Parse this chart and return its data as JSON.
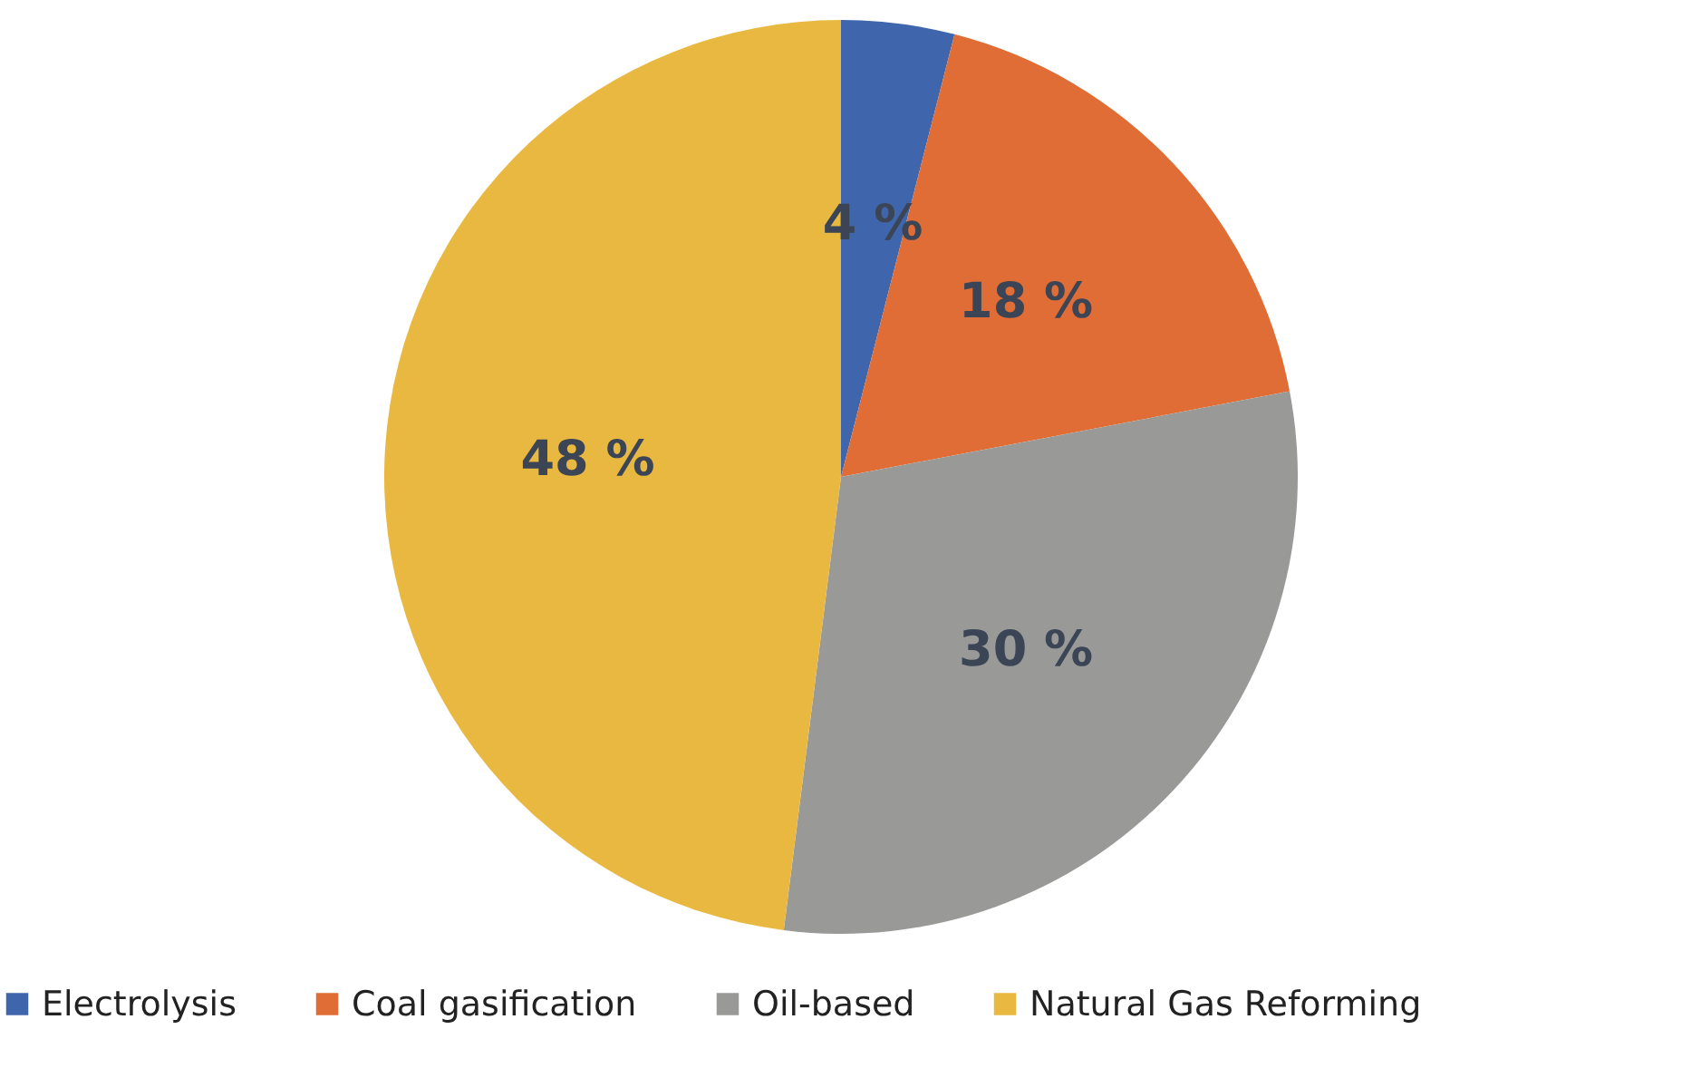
{
  "chart_data": {
    "type": "pie",
    "categories": [
      "Electrolysis",
      "Coal gasification",
      "Oil-based",
      "Natural Gas Reforming"
    ],
    "values": [
      4,
      18,
      30,
      48
    ],
    "colors": [
      "#3f65ad",
      "#e06d35",
      "#999a98",
      "#e9b840"
    ],
    "value_labels": [
      "4 %",
      "18 %",
      "30 %",
      "48 %"
    ],
    "legend": "bottom"
  }
}
